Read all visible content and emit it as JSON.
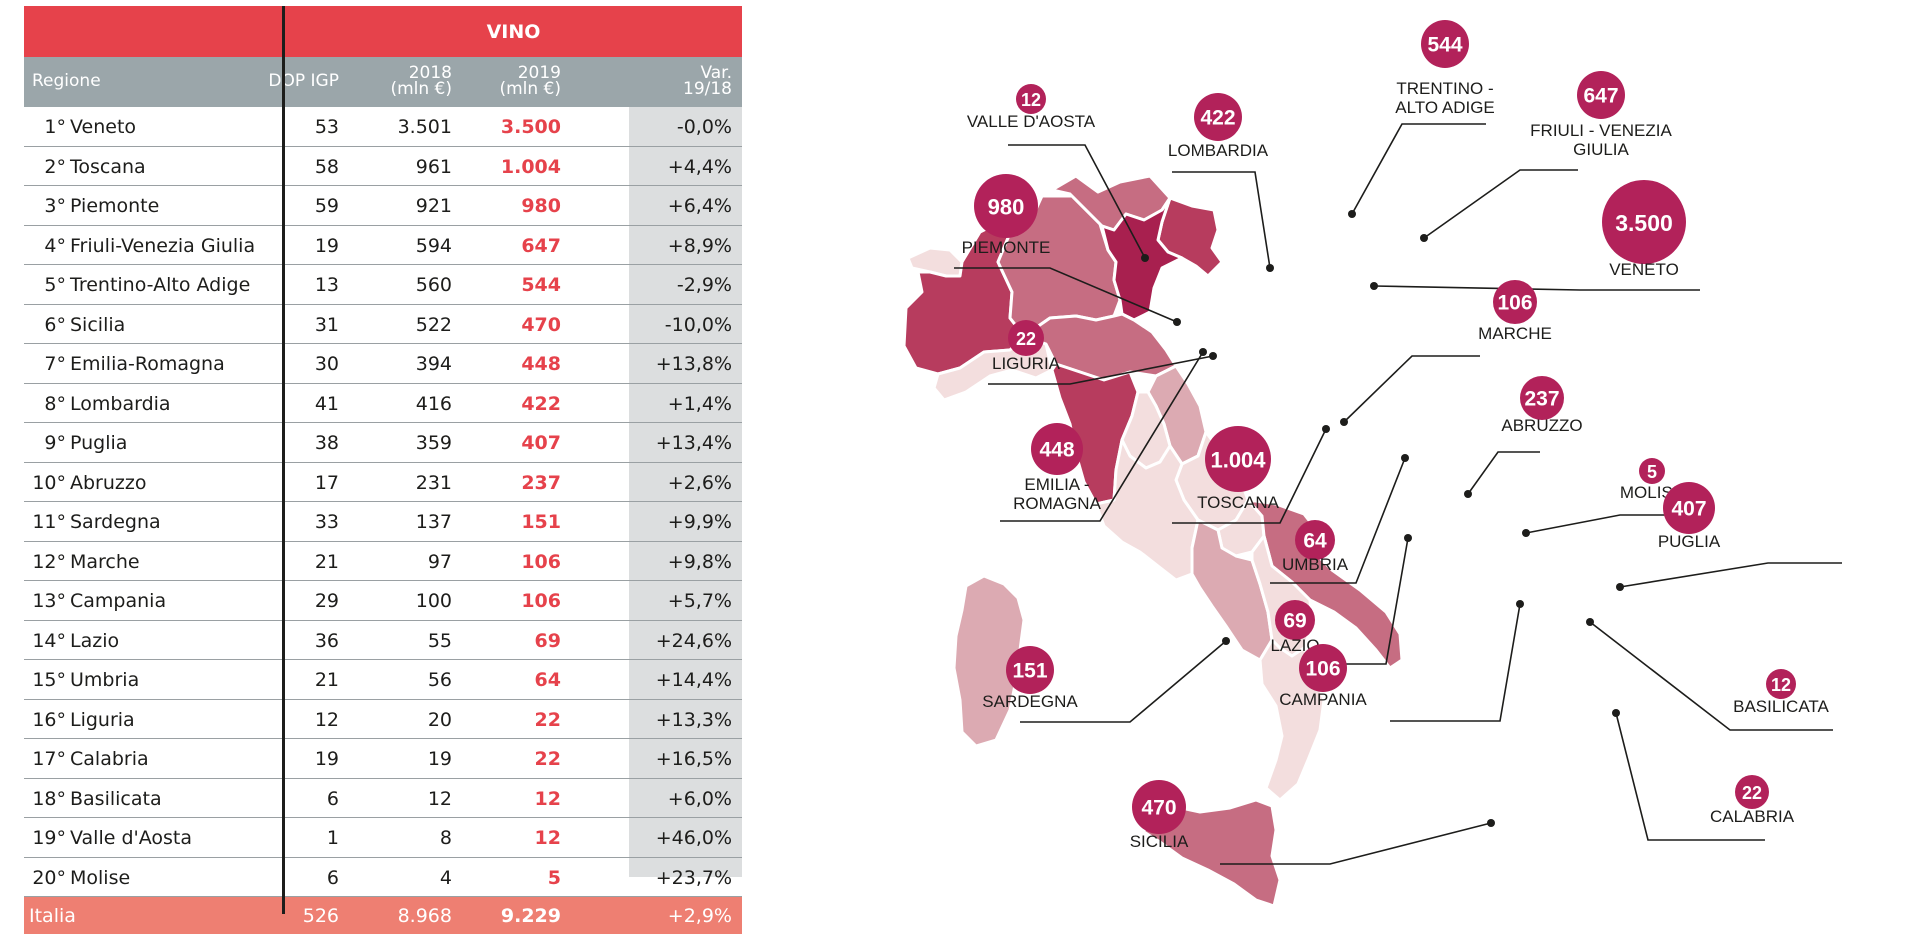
{
  "table": {
    "section_title": "VINO",
    "columns": {
      "region": "Regione",
      "dop_igp": "DOP IGP",
      "y2018": [
        "2018",
        "(mln €)"
      ],
      "y2019": [
        "2019",
        "(mln €)"
      ],
      "var": [
        "Var.",
        "19/18"
      ]
    },
    "rows": [
      {
        "rank": "1°",
        "name": "Veneto",
        "dop_igp": "53",
        "v2018": "3.501",
        "v2019": "3.500",
        "var": "-0,0%"
      },
      {
        "rank": "2°",
        "name": "Toscana",
        "dop_igp": "58",
        "v2018": "961",
        "v2019": "1.004",
        "var": "+4,4%"
      },
      {
        "rank": "3°",
        "name": "Piemonte",
        "dop_igp": "59",
        "v2018": "921",
        "v2019": "980",
        "var": "+6,4%"
      },
      {
        "rank": "4°",
        "name": "Friuli-Venezia Giulia",
        "dop_igp": "19",
        "v2018": "594",
        "v2019": "647",
        "var": "+8,9%"
      },
      {
        "rank": "5°",
        "name": "Trentino-Alto Adige",
        "dop_igp": "13",
        "v2018": "560",
        "v2019": "544",
        "var": "-2,9%"
      },
      {
        "rank": "6°",
        "name": "Sicilia",
        "dop_igp": "31",
        "v2018": "522",
        "v2019": "470",
        "var": "-10,0%"
      },
      {
        "rank": "7°",
        "name": "Emilia-Romagna",
        "dop_igp": "30",
        "v2018": "394",
        "v2019": "448",
        "var": "+13,8%"
      },
      {
        "rank": "8°",
        "name": "Lombardia",
        "dop_igp": "41",
        "v2018": "416",
        "v2019": "422",
        "var": "+1,4%"
      },
      {
        "rank": "9°",
        "name": "Puglia",
        "dop_igp": "38",
        "v2018": "359",
        "v2019": "407",
        "var": "+13,4%"
      },
      {
        "rank": "10°",
        "name": "Abruzzo",
        "dop_igp": "17",
        "v2018": "231",
        "v2019": "237",
        "var": "+2,6%"
      },
      {
        "rank": "11°",
        "name": "Sardegna",
        "dop_igp": "33",
        "v2018": "137",
        "v2019": "151",
        "var": "+9,9%"
      },
      {
        "rank": "12°",
        "name": "Marche",
        "dop_igp": "21",
        "v2018": "97",
        "v2019": "106",
        "var": "+9,8%"
      },
      {
        "rank": "13°",
        "name": "Campania",
        "dop_igp": "29",
        "v2018": "100",
        "v2019": "106",
        "var": "+5,7%"
      },
      {
        "rank": "14°",
        "name": "Lazio",
        "dop_igp": "36",
        "v2018": "55",
        "v2019": "69",
        "var": "+24,6%"
      },
      {
        "rank": "15°",
        "name": "Umbria",
        "dop_igp": "21",
        "v2018": "56",
        "v2019": "64",
        "var": "+14,4%"
      },
      {
        "rank": "16°",
        "name": "Liguria",
        "dop_igp": "12",
        "v2018": "20",
        "v2019": "22",
        "var": "+13,3%"
      },
      {
        "rank": "17°",
        "name": "Calabria",
        "dop_igp": "19",
        "v2018": "19",
        "v2019": "22",
        "var": "+16,5%"
      },
      {
        "rank": "18°",
        "name": "Basilicata",
        "dop_igp": "6",
        "v2018": "12",
        "v2019": "12",
        "var": "+6,0%"
      },
      {
        "rank": "19°",
        "name": "Valle d'Aosta",
        "dop_igp": "1",
        "v2018": "8",
        "v2019": "12",
        "var": "+46,0%"
      },
      {
        "rank": "20°",
        "name": "Molise",
        "dop_igp": "6",
        "v2018": "4",
        "v2019": "5",
        "var": "+23,7%"
      }
    ],
    "total": {
      "name": "Italia",
      "dop_igp": "526",
      "v2018": "8.968",
      "v2019": "9.229",
      "var": "+2,9%"
    }
  },
  "chart_data": {
    "type": "table",
    "map_labels": [
      {
        "id": "valle-daosta",
        "value": "12",
        "label": [
          "VALLE D'AOSTA"
        ]
      },
      {
        "id": "lombardia",
        "value": "422",
        "label": [
          "LOMBARDIA"
        ]
      },
      {
        "id": "trentino",
        "value": "544",
        "label": [
          "TRENTINO -",
          "ALTO ADIGE"
        ]
      },
      {
        "id": "friuli",
        "value": "647",
        "label": [
          "FRIULI - VENEZIA",
          "GIULIA"
        ]
      },
      {
        "id": "piemonte",
        "value": "980",
        "label": [
          "PIEMONTE"
        ]
      },
      {
        "id": "veneto",
        "value": "3.500",
        "label": [
          "VENETO"
        ]
      },
      {
        "id": "liguria",
        "value": "22",
        "label": [
          "LIGURIA"
        ]
      },
      {
        "id": "marche",
        "value": "106",
        "label": [
          "MARCHE"
        ]
      },
      {
        "id": "abruzzo",
        "value": "237",
        "label": [
          "ABRUZZO"
        ]
      },
      {
        "id": "emilia",
        "value": "448",
        "label": [
          "EMILIA -",
          "ROMAGNA"
        ]
      },
      {
        "id": "toscana",
        "value": "1.004",
        "label": [
          "TOSCANA"
        ]
      },
      {
        "id": "molise",
        "value": "5",
        "label": [
          "MOLISE"
        ]
      },
      {
        "id": "puglia",
        "value": "407",
        "label": [
          "PUGLIA"
        ]
      },
      {
        "id": "umbria",
        "value": "64",
        "label": [
          "UMBRIA"
        ]
      },
      {
        "id": "lazio",
        "value": "69",
        "label": [
          "LAZIO"
        ]
      },
      {
        "id": "sardegna",
        "value": "151",
        "label": [
          "SARDEGNA"
        ]
      },
      {
        "id": "campania",
        "value": "106",
        "label": [
          "CAMPANIA"
        ]
      },
      {
        "id": "basilicata",
        "value": "12",
        "label": [
          "BASILICATA"
        ]
      },
      {
        "id": "calabria",
        "value": "22",
        "label": [
          "CALABRIA"
        ]
      },
      {
        "id": "sicilia",
        "value": "470",
        "label": [
          "SICILIA"
        ]
      }
    ]
  }
}
